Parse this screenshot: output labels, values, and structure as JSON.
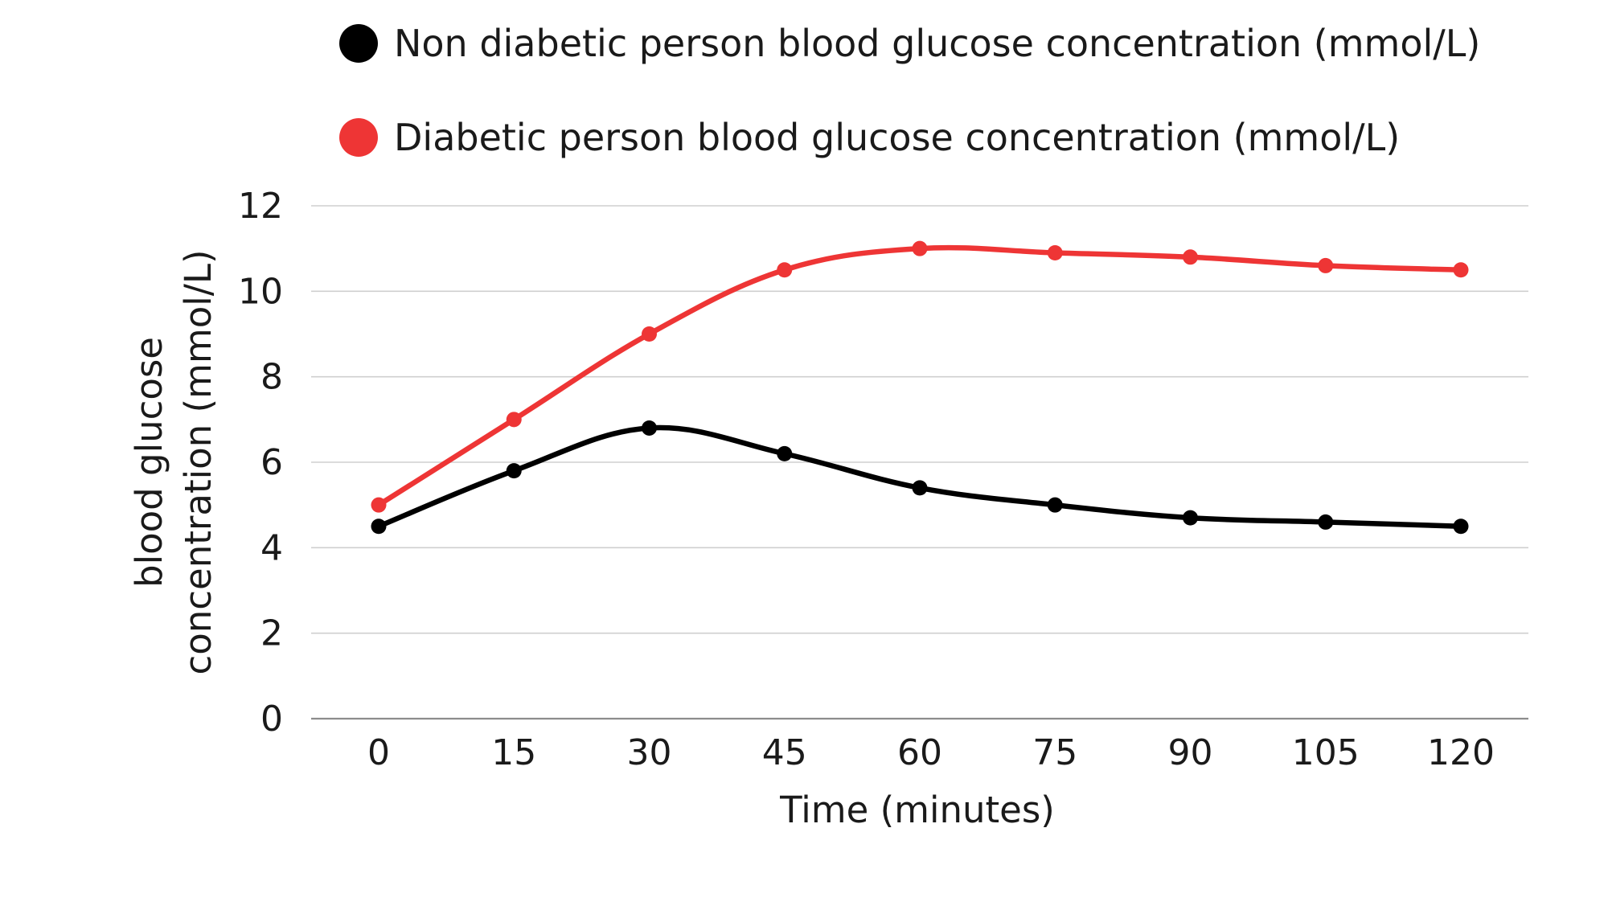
{
  "chart_data": {
    "type": "line",
    "title": "",
    "xlabel": "Time (minutes)",
    "ylabel_lines": [
      "blood glucose",
      "concentration (mmol/L)"
    ],
    "x": [
      0,
      15,
      30,
      45,
      60,
      75,
      90,
      105,
      120
    ],
    "x_tick_labels": [
      "0",
      "15",
      "30",
      "45",
      "60",
      "75",
      "90",
      "105",
      "120"
    ],
    "y_ticks": [
      0,
      2,
      4,
      6,
      8,
      10,
      12
    ],
    "y_tick_labels": [
      "0",
      "2",
      "4",
      "6",
      "8",
      "10",
      "12"
    ],
    "ylim": [
      0,
      12
    ],
    "grid": true,
    "legend_position": "top",
    "series": [
      {
        "name": "Non diabetic person blood glucose concentration (mmol/L)",
        "color": "#000000",
        "values": [
          4.5,
          5.8,
          6.8,
          6.2,
          5.4,
          5.0,
          4.7,
          4.6,
          4.5
        ]
      },
      {
        "name": "Diabetic person blood glucose concentration (mmol/L)",
        "color": "#ee3535",
        "values": [
          5.0,
          7.0,
          9.0,
          10.5,
          11.0,
          10.9,
          10.8,
          10.6,
          10.5
        ]
      }
    ]
  }
}
